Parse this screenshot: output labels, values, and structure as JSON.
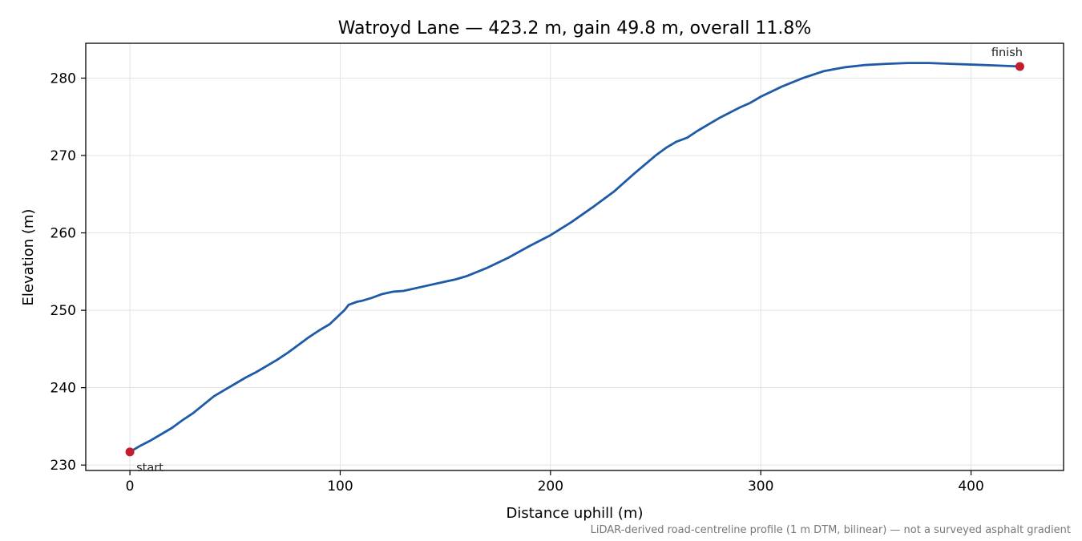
{
  "chart_data": {
    "type": "line",
    "title": "Watroyd Lane — 423.2 m, gain 49.8 m, overall 11.8%",
    "xlabel": "Distance uphill (m)",
    "ylabel": "Elevation (m)",
    "xlim": [
      -21,
      444
    ],
    "ylim": [
      229.3,
      284.5
    ],
    "xticks": [
      0,
      100,
      200,
      300,
      400
    ],
    "yticks": [
      230,
      240,
      250,
      260,
      270,
      280
    ],
    "grid": true,
    "line_color": "#1f5aa8",
    "marker_color": "#c41e2e",
    "series": [
      {
        "x": [
          0,
          5,
          10,
          15,
          20,
          25,
          30,
          35,
          40,
          45,
          50,
          55,
          60,
          65,
          70,
          75,
          80,
          85,
          90,
          95,
          100,
          102,
          104,
          106,
          108,
          110,
          115,
          120,
          125,
          130,
          135,
          140,
          145,
          150,
          155,
          160,
          170,
          180,
          190,
          200,
          210,
          220,
          230,
          240,
          250,
          255,
          260,
          265,
          270,
          280,
          290,
          295,
          300,
          310,
          320,
          330,
          340,
          350,
          360,
          370,
          380,
          390,
          400,
          410,
          423.2
        ],
        "y": [
          231.7,
          232.5,
          233.2,
          234.0,
          234.8,
          235.8,
          236.7,
          237.8,
          238.9,
          239.7,
          240.5,
          241.3,
          242.0,
          242.8,
          243.6,
          244.5,
          245.5,
          246.5,
          247.4,
          248.2,
          249.5,
          250.0,
          250.7,
          250.9,
          251.1,
          251.2,
          251.6,
          252.1,
          252.4,
          252.5,
          252.8,
          253.1,
          253.4,
          253.7,
          254.0,
          254.4,
          255.5,
          256.8,
          258.3,
          259.7,
          261.4,
          263.3,
          265.3,
          267.7,
          270.0,
          271.0,
          271.8,
          272.3,
          273.2,
          274.8,
          276.2,
          276.8,
          277.6,
          278.9,
          280.0,
          280.9,
          281.4,
          281.7,
          281.85,
          281.95,
          281.95,
          281.85,
          281.75,
          281.65,
          281.5
        ]
      }
    ],
    "annotations": [
      {
        "label": "start",
        "x": 0,
        "y": 231.7
      },
      {
        "label": "finish",
        "x": 423.2,
        "y": 281.5
      }
    ],
    "footnote": "LiDAR-derived road-centreline profile (1 m DTM, bilinear) — not a surveyed asphalt gradient"
  }
}
